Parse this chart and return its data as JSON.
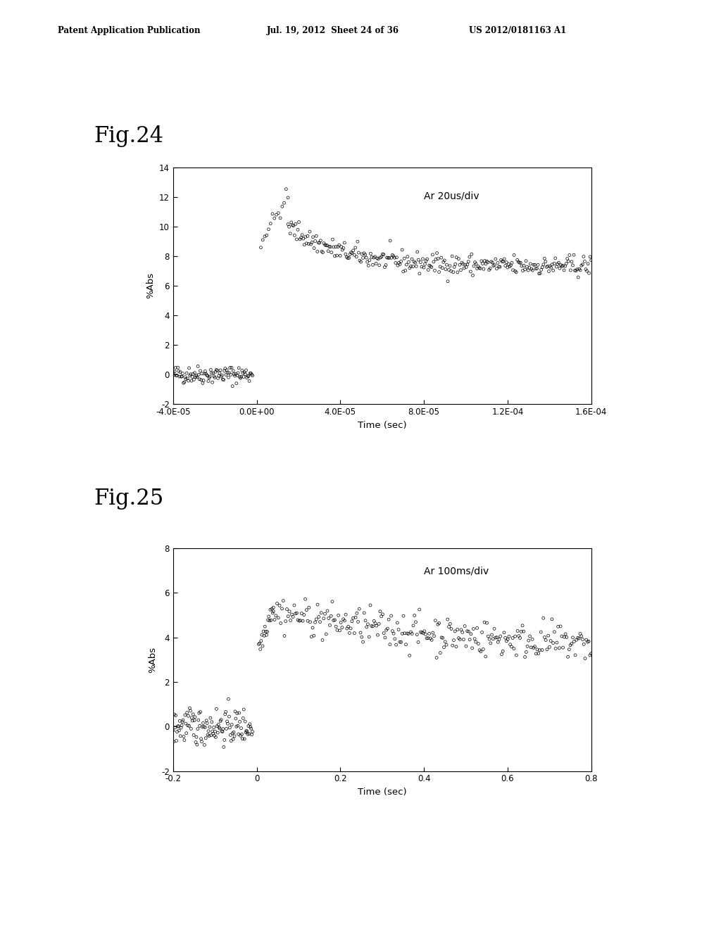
{
  "fig24": {
    "title": "Fig.24",
    "annotation": "Ar 20us/div",
    "xlabel": "Time (sec)",
    "ylabel": "%Abs",
    "xlim": [
      -4e-05,
      0.00016
    ],
    "ylim": [
      -2,
      14
    ],
    "yticks": [
      -2,
      0,
      2,
      4,
      6,
      8,
      10,
      12,
      14
    ],
    "xticks": [
      -4e-05,
      0.0,
      4e-05,
      8e-05,
      0.00012,
      0.00016
    ],
    "xtick_labels": [
      "-4.0E-05",
      "0.0E+00",
      "4.0E-05",
      "8.0E-05",
      "1.2E-04",
      "1.6E-04"
    ]
  },
  "fig25": {
    "title": "Fig.25",
    "annotation": "Ar 100ms/div",
    "xlabel": "Time (sec)",
    "ylabel": "%Abs",
    "xlim": [
      -0.2,
      0.8
    ],
    "ylim": [
      -2,
      8
    ],
    "yticks": [
      -2,
      0,
      2,
      4,
      6,
      8
    ],
    "xticks": [
      -0.2,
      0.0,
      0.2,
      0.4,
      0.6,
      0.8
    ],
    "xtick_labels": [
      "-0.2",
      "0",
      "0.2",
      "0.4",
      "0.6",
      "0.8"
    ]
  },
  "header_left": "Patent Application Publication",
  "header_mid": "Jul. 19, 2012  Sheet 24 of 36",
  "header_right": "US 2012/0181163 A1",
  "background_color": "#ffffff",
  "scatter_color": "#000000",
  "marker_size": 8,
  "marker_style": "o"
}
